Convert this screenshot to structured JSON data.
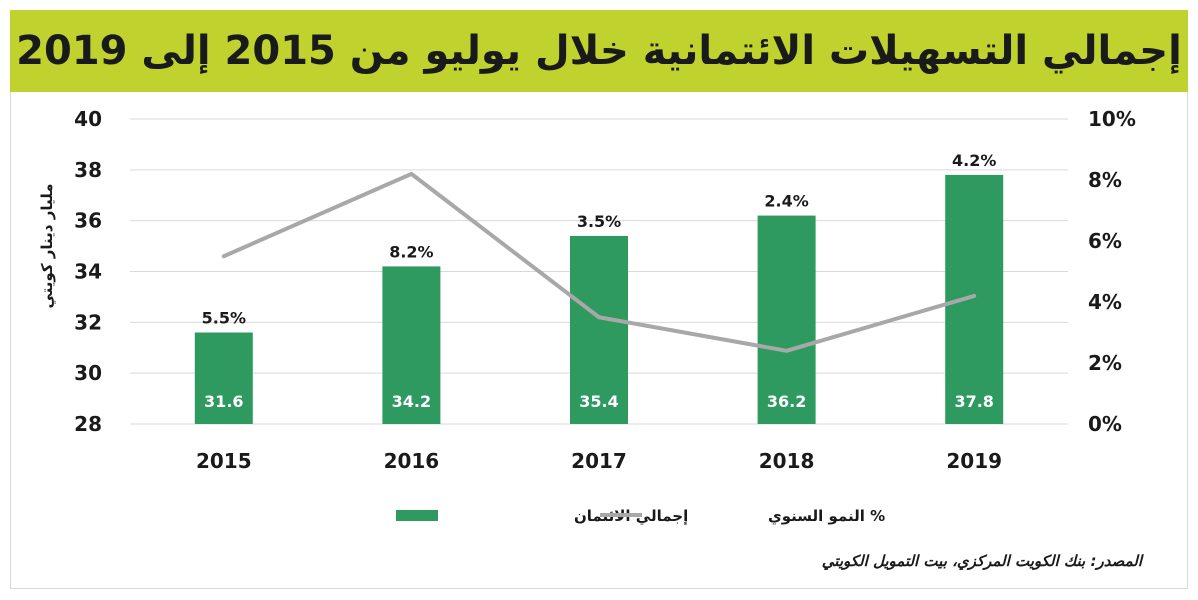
{
  "title": "إجمالي التسهيلات الائتمانية خلال يوليو من 2015 إلى 2019",
  "source": "المصدر: بنك الكويت المركزي، بيت التمويل الكويتي",
  "colors": {
    "bar": "#2e9a5f",
    "line": "#a8a8a8",
    "title_bg": "#bfd22e",
    "grid": "#d9d9d9"
  },
  "chart_data": {
    "type": "bar",
    "categories": [
      "2015",
      "2016",
      "2017",
      "2018",
      "2019"
    ],
    "series": [
      {
        "name": "إجمالي الائتمان",
        "type": "bar",
        "axis": "left",
        "values": [
          31.6,
          34.2,
          35.4,
          36.2,
          37.8
        ],
        "labels": [
          "31.6",
          "34.2",
          "35.4",
          "36.2",
          "37.8"
        ]
      },
      {
        "name": "% النمو السنوي",
        "type": "line",
        "axis": "right",
        "values": [
          5.5,
          8.2,
          3.5,
          2.4,
          4.2
        ],
        "labels": [
          "5.5%",
          "8.2%",
          "3.5%",
          "2.4%",
          "4.2%"
        ]
      }
    ],
    "ylabel": "مليار دينار كويتي",
    "ylim": [
      28,
      40
    ],
    "yticks": [
      28,
      30,
      32,
      34,
      36,
      38,
      40
    ],
    "y2lim": [
      0,
      10
    ],
    "y2ticks": [
      "0%",
      "2%",
      "4%",
      "6%",
      "8%",
      "10%"
    ],
    "grid": true,
    "legend_position": "bottom"
  }
}
